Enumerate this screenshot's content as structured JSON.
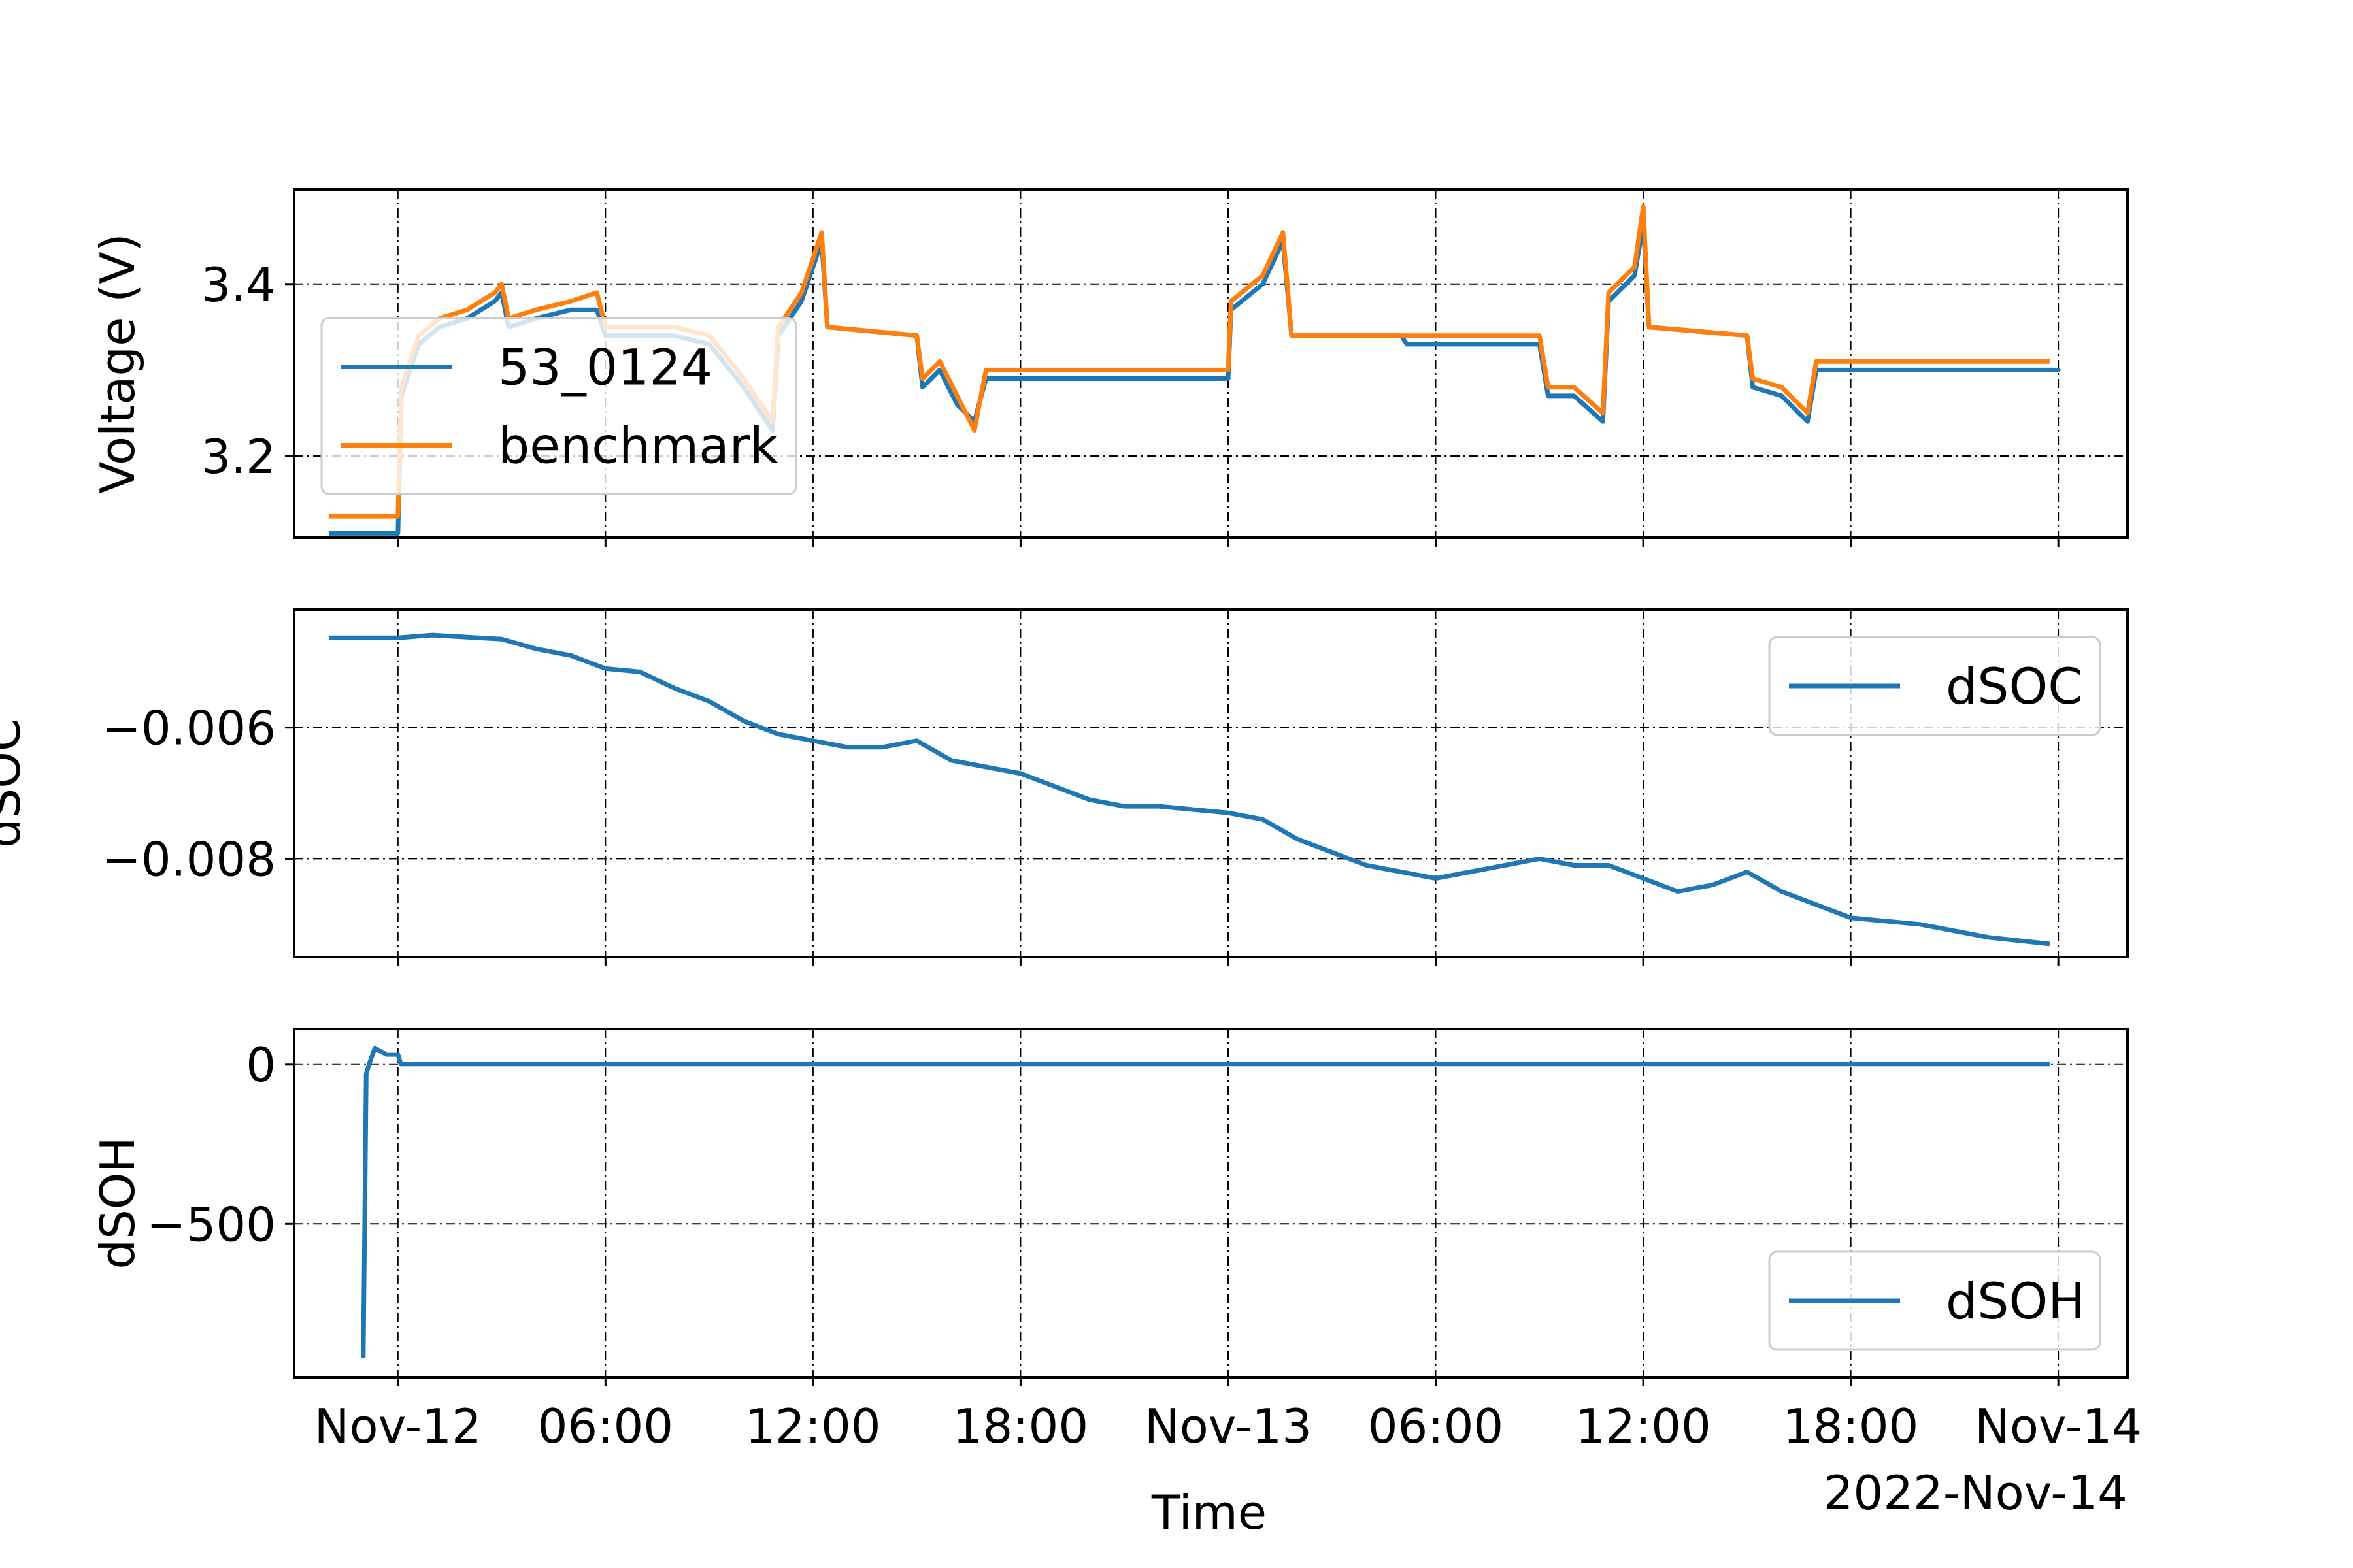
{
  "figure": {
    "xlabel": "Time",
    "offset_label": "2022-Nov-14"
  },
  "x_axis": {
    "type": "datetime",
    "range": [
      "2022-11-11T21:00",
      "2022-11-14T02:00"
    ],
    "ticks": [
      {
        "t": "2022-11-12T00:00",
        "label": "Nov-12"
      },
      {
        "t": "2022-11-12T06:00",
        "label": "06:00"
      },
      {
        "t": "2022-11-12T12:00",
        "label": "12:00"
      },
      {
        "t": "2022-11-12T18:00",
        "label": "18:00"
      },
      {
        "t": "2022-11-13T00:00",
        "label": "Nov-13"
      },
      {
        "t": "2022-11-13T06:00",
        "label": "06:00"
      },
      {
        "t": "2022-11-13T12:00",
        "label": "12:00"
      },
      {
        "t": "2022-11-13T18:00",
        "label": "18:00"
      },
      {
        "t": "2022-11-14T00:00",
        "label": "Nov-14"
      }
    ]
  },
  "colors": {
    "series_blue": "#1f77b4",
    "series_orange": "#ff7f0e",
    "grid": "#000000"
  },
  "chart_data": [
    {
      "type": "line",
      "ylabel": "Voltage (V)",
      "ylim": [
        3.105,
        3.51
      ],
      "yticks": [
        3.2,
        3.4
      ],
      "ytick_labels": [
        "3.2",
        "3.4"
      ],
      "grid": true,
      "legend_position": "center-left",
      "series": [
        {
          "name": "53_0124",
          "color": "#1f77b4",
          "points": [
            [
              "2022-11-11T22:00",
              3.11
            ],
            [
              "2022-11-12T00:00",
              3.11
            ],
            [
              "2022-11-12T00:06",
              3.27
            ],
            [
              "2022-11-12T00:36",
              3.33
            ],
            [
              "2022-11-12T01:12",
              3.35
            ],
            [
              "2022-11-12T02:00",
              3.36
            ],
            [
              "2022-11-12T02:48",
              3.38
            ],
            [
              "2022-11-12T03:00",
              3.39
            ],
            [
              "2022-11-12T03:12",
              3.35
            ],
            [
              "2022-11-12T04:00",
              3.36
            ],
            [
              "2022-11-12T05:00",
              3.37
            ],
            [
              "2022-11-12T05:45",
              3.37
            ],
            [
              "2022-11-12T06:00",
              3.34
            ],
            [
              "2022-11-12T08:00",
              3.34
            ],
            [
              "2022-11-12T09:00",
              3.33
            ],
            [
              "2022-11-12T10:00",
              3.28
            ],
            [
              "2022-11-12T10:50",
              3.23
            ],
            [
              "2022-11-12T11:00",
              3.34
            ],
            [
              "2022-11-12T11:40",
              3.38
            ],
            [
              "2022-11-12T11:55",
              3.41
            ],
            [
              "2022-11-12T12:15",
              3.45
            ],
            [
              "2022-11-12T12:25",
              3.35
            ],
            [
              "2022-11-12T15:00",
              3.34
            ],
            [
              "2022-11-12T15:10",
              3.28
            ],
            [
              "2022-11-12T15:40",
              3.3
            ],
            [
              "2022-11-12T16:10",
              3.26
            ],
            [
              "2022-11-12T16:40",
              3.24
            ],
            [
              "2022-11-12T17:00",
              3.29
            ],
            [
              "2022-11-12T22:00",
              3.29
            ],
            [
              "2022-11-13T00:00",
              3.29
            ],
            [
              "2022-11-13T00:05",
              3.37
            ],
            [
              "2022-11-13T01:00",
              3.4
            ],
            [
              "2022-11-13T01:35",
              3.45
            ],
            [
              "2022-11-13T01:50",
              3.34
            ],
            [
              "2022-11-13T05:00",
              3.34
            ],
            [
              "2022-11-13T05:10",
              3.33
            ],
            [
              "2022-11-13T09:00",
              3.33
            ],
            [
              "2022-11-13T09:15",
              3.27
            ],
            [
              "2022-11-13T10:00",
              3.27
            ],
            [
              "2022-11-13T10:50",
              3.24
            ],
            [
              "2022-11-13T11:00",
              3.38
            ],
            [
              "2022-11-13T11:45",
              3.41
            ],
            [
              "2022-11-13T12:00",
              3.47
            ],
            [
              "2022-11-13T12:10",
              3.35
            ],
            [
              "2022-11-13T15:00",
              3.34
            ],
            [
              "2022-11-13T15:10",
              3.28
            ],
            [
              "2022-11-13T16:00",
              3.27
            ],
            [
              "2022-11-13T16:45",
              3.24
            ],
            [
              "2022-11-13T17:00",
              3.3
            ],
            [
              "2022-11-13T20:00",
              3.3
            ],
            [
              "2022-11-14T00:00",
              3.3
            ],
            [
              "2022-11-13T23:45",
              3.3
            ]
          ]
        },
        {
          "name": "benchmark",
          "color": "#ff7f0e",
          "points": [
            [
              "2022-11-11T22:00",
              3.13
            ],
            [
              "2022-11-12T00:00",
              3.13
            ],
            [
              "2022-11-12T00:06",
              3.28
            ],
            [
              "2022-11-12T00:36",
              3.34
            ],
            [
              "2022-11-12T01:12",
              3.36
            ],
            [
              "2022-11-12T02:00",
              3.37
            ],
            [
              "2022-11-12T02:48",
              3.39
            ],
            [
              "2022-11-12T03:00",
              3.4
            ],
            [
              "2022-11-12T03:12",
              3.36
            ],
            [
              "2022-11-12T04:00",
              3.37
            ],
            [
              "2022-11-12T05:00",
              3.38
            ],
            [
              "2022-11-12T05:45",
              3.39
            ],
            [
              "2022-11-12T06:00",
              3.35
            ],
            [
              "2022-11-12T08:00",
              3.35
            ],
            [
              "2022-11-12T09:00",
              3.34
            ],
            [
              "2022-11-12T10:00",
              3.29
            ],
            [
              "2022-11-12T10:50",
              3.24
            ],
            [
              "2022-11-12T11:00",
              3.35
            ],
            [
              "2022-11-12T11:40",
              3.39
            ],
            [
              "2022-11-12T11:55",
              3.42
            ],
            [
              "2022-11-12T12:15",
              3.46
            ],
            [
              "2022-11-12T12:25",
              3.35
            ],
            [
              "2022-11-12T15:00",
              3.34
            ],
            [
              "2022-11-12T15:10",
              3.29
            ],
            [
              "2022-11-12T15:40",
              3.31
            ],
            [
              "2022-11-12T16:10",
              3.27
            ],
            [
              "2022-11-12T16:40",
              3.23
            ],
            [
              "2022-11-12T17:00",
              3.3
            ],
            [
              "2022-11-12T22:00",
              3.3
            ],
            [
              "2022-11-13T00:00",
              3.3
            ],
            [
              "2022-11-13T00:05",
              3.38
            ],
            [
              "2022-11-13T01:00",
              3.41
            ],
            [
              "2022-11-13T01:35",
              3.46
            ],
            [
              "2022-11-13T01:50",
              3.34
            ],
            [
              "2022-11-13T05:00",
              3.34
            ],
            [
              "2022-11-13T05:10",
              3.34
            ],
            [
              "2022-11-13T09:00",
              3.34
            ],
            [
              "2022-11-13T09:15",
              3.28
            ],
            [
              "2022-11-13T10:00",
              3.28
            ],
            [
              "2022-11-13T10:50",
              3.25
            ],
            [
              "2022-11-13T11:00",
              3.39
            ],
            [
              "2022-11-13T11:45",
              3.42
            ],
            [
              "2022-11-13T12:00",
              3.49
            ],
            [
              "2022-11-13T12:10",
              3.35
            ],
            [
              "2022-11-13T15:00",
              3.34
            ],
            [
              "2022-11-13T15:10",
              3.29
            ],
            [
              "2022-11-13T16:00",
              3.28
            ],
            [
              "2022-11-13T16:45",
              3.25
            ],
            [
              "2022-11-13T17:00",
              3.31
            ],
            [
              "2022-11-13T20:00",
              3.31
            ],
            [
              "2022-11-13T23:45",
              3.31
            ]
          ]
        }
      ]
    },
    {
      "type": "line",
      "ylabel": "dSOC",
      "ylim": [
        -0.0095,
        -0.0042
      ],
      "yticks": [
        -0.008,
        -0.006
      ],
      "ytick_labels": [
        "−0.008",
        "−0.006"
      ],
      "grid": true,
      "legend_position": "upper-right",
      "series": [
        {
          "name": "dSOC",
          "color": "#1f77b4",
          "points": [
            [
              "2022-11-11T22:00",
              -0.00463
            ],
            [
              "2022-11-12T00:00",
              -0.00463
            ],
            [
              "2022-11-12T01:00",
              -0.00459
            ],
            [
              "2022-11-12T02:00",
              -0.00462
            ],
            [
              "2022-11-12T03:00",
              -0.00465
            ],
            [
              "2022-11-12T04:00",
              -0.0048
            ],
            [
              "2022-11-12T05:00",
              -0.0049
            ],
            [
              "2022-11-12T06:00",
              -0.0051
            ],
            [
              "2022-11-12T07:00",
              -0.00515
            ],
            [
              "2022-11-12T08:00",
              -0.0054
            ],
            [
              "2022-11-12T09:00",
              -0.0056
            ],
            [
              "2022-11-12T10:00",
              -0.0059
            ],
            [
              "2022-11-12T11:00",
              -0.0061
            ],
            [
              "2022-11-12T12:00",
              -0.0062
            ],
            [
              "2022-11-12T13:00",
              -0.0063
            ],
            [
              "2022-11-12T14:00",
              -0.0063
            ],
            [
              "2022-11-12T15:00",
              -0.0062
            ],
            [
              "2022-11-12T16:00",
              -0.0065
            ],
            [
              "2022-11-12T17:00",
              -0.0066
            ],
            [
              "2022-11-12T18:00",
              -0.0067
            ],
            [
              "2022-11-12T19:00",
              -0.0069
            ],
            [
              "2022-11-12T20:00",
              -0.0071
            ],
            [
              "2022-11-12T21:00",
              -0.0072
            ],
            [
              "2022-11-12T22:00",
              -0.0072
            ],
            [
              "2022-11-13T00:00",
              -0.0073
            ],
            [
              "2022-11-13T01:00",
              -0.0074
            ],
            [
              "2022-11-13T02:00",
              -0.0077
            ],
            [
              "2022-11-13T03:00",
              -0.0079
            ],
            [
              "2022-11-13T04:00",
              -0.0081
            ],
            [
              "2022-11-13T05:00",
              -0.0082
            ],
            [
              "2022-11-13T06:00",
              -0.0083
            ],
            [
              "2022-11-13T07:00",
              -0.0082
            ],
            [
              "2022-11-13T08:00",
              -0.0081
            ],
            [
              "2022-11-13T09:00",
              -0.008
            ],
            [
              "2022-11-13T10:00",
              -0.0081
            ],
            [
              "2022-11-13T11:00",
              -0.0081
            ],
            [
              "2022-11-13T12:00",
              -0.0083
            ],
            [
              "2022-11-13T13:00",
              -0.0085
            ],
            [
              "2022-11-13T14:00",
              -0.0084
            ],
            [
              "2022-11-13T15:00",
              -0.0082
            ],
            [
              "2022-11-13T16:00",
              -0.0085
            ],
            [
              "2022-11-13T17:00",
              -0.0087
            ],
            [
              "2022-11-13T18:00",
              -0.0089
            ],
            [
              "2022-11-13T20:00",
              -0.009
            ],
            [
              "2022-11-13T21:00",
              -0.0091
            ],
            [
              "2022-11-13T22:00",
              -0.0092
            ],
            [
              "2022-11-13T23:45",
              -0.0093
            ]
          ]
        }
      ]
    },
    {
      "type": "line",
      "ylabel": "dSOH",
      "ylim": [
        -980,
        110
      ],
      "yticks": [
        -500,
        0
      ],
      "ytick_labels": [
        "−500",
        "0"
      ],
      "grid": true,
      "legend_position": "lower-right",
      "series": [
        {
          "name": "dSOH",
          "color": "#1f77b4",
          "points": [
            [
              "2022-11-11T23:00",
              -920
            ],
            [
              "2022-11-11T23:05",
              -30
            ],
            [
              "2022-11-11T23:10",
              0
            ],
            [
              "2022-11-11T23:20",
              50
            ],
            [
              "2022-11-11T23:40",
              30
            ],
            [
              "2022-11-12T00:00",
              30
            ],
            [
              "2022-11-12T00:05",
              0
            ],
            [
              "2022-11-13T23:45",
              0
            ]
          ]
        }
      ]
    }
  ]
}
